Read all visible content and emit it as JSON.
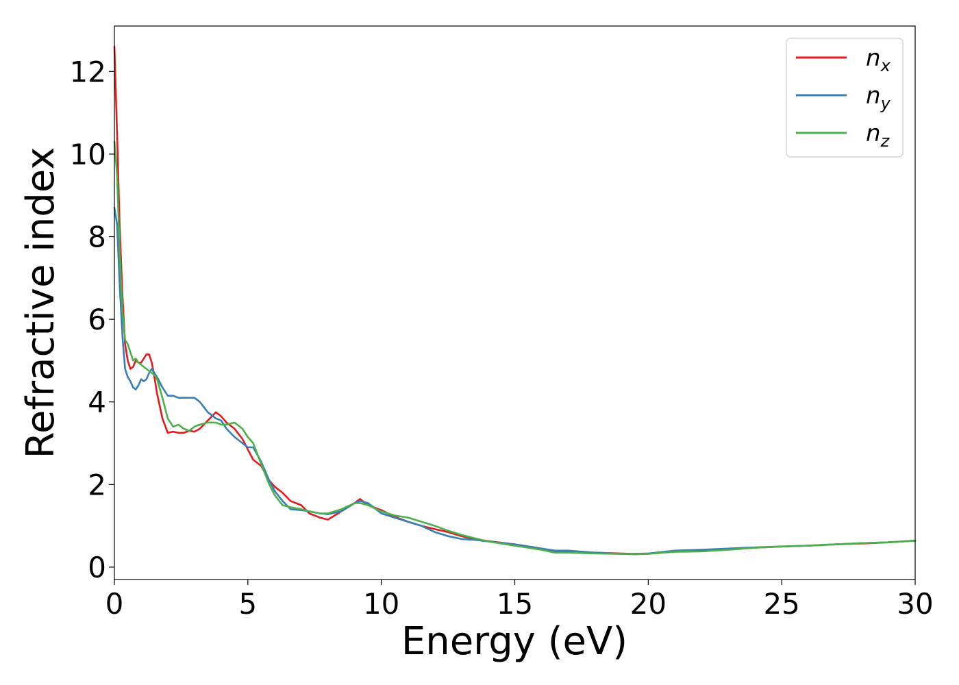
{
  "chart_data": {
    "type": "line",
    "xlabel": "Energy (eV)",
    "ylabel": "Refractive index",
    "xlim": [
      0,
      30
    ],
    "ylim": [
      -0.3,
      13.1
    ],
    "xticks": [
      "0",
      "5",
      "10",
      "15",
      "20",
      "25",
      "30"
    ],
    "yticks": [
      "0",
      "2",
      "4",
      "6",
      "8",
      "10",
      "12"
    ],
    "grid": false,
    "legend_position": "top-right",
    "series": [
      {
        "name": "n",
        "subscript": "x",
        "color": "#e41a1c",
        "x": [
          0.0,
          0.1,
          0.2,
          0.3,
          0.4,
          0.5,
          0.6,
          0.7,
          0.8,
          0.9,
          1.0,
          1.1,
          1.2,
          1.3,
          1.4,
          1.5,
          1.6,
          1.8,
          2.0,
          2.2,
          2.4,
          2.6,
          2.8,
          3.0,
          3.2,
          3.5,
          3.8,
          4.0,
          4.2,
          4.5,
          4.8,
          5.0,
          5.2,
          5.5,
          5.8,
          6.0,
          6.3,
          6.6,
          7.0,
          7.3,
          7.7,
          8.0,
          8.5,
          9.0,
          9.2,
          9.5,
          10.0,
          10.5,
          11.0,
          11.5,
          12.0,
          12.5,
          13.0,
          13.5,
          14.0,
          15.0,
          16.0,
          16.5,
          17.0,
          18.0,
          19.0,
          19.5,
          20.0,
          21.0,
          22.0,
          23.0,
          24.0,
          25.0,
          26.0,
          27.0,
          28.0,
          29.0,
          30.0
        ],
        "y": [
          12.6,
          10.5,
          8.2,
          6.6,
          5.4,
          5.0,
          4.8,
          4.85,
          5.0,
          4.95,
          4.95,
          5.05,
          5.15,
          5.15,
          4.95,
          4.6,
          4.2,
          3.6,
          3.25,
          3.28,
          3.25,
          3.25,
          3.3,
          3.28,
          3.35,
          3.55,
          3.75,
          3.65,
          3.5,
          3.35,
          3.1,
          2.85,
          2.6,
          2.45,
          2.1,
          1.95,
          1.8,
          1.6,
          1.5,
          1.3,
          1.2,
          1.15,
          1.35,
          1.55,
          1.65,
          1.5,
          1.38,
          1.22,
          1.1,
          1.0,
          0.92,
          0.85,
          0.75,
          0.68,
          0.63,
          0.55,
          0.45,
          0.38,
          0.38,
          0.35,
          0.33,
          0.32,
          0.33,
          0.38,
          0.4,
          0.43,
          0.47,
          0.5,
          0.52,
          0.55,
          0.57,
          0.6,
          0.64
        ]
      },
      {
        "name": "n",
        "subscript": "y",
        "color": "#377eb8",
        "x": [
          0.0,
          0.1,
          0.2,
          0.3,
          0.4,
          0.5,
          0.6,
          0.7,
          0.8,
          0.9,
          1.0,
          1.1,
          1.2,
          1.3,
          1.4,
          1.5,
          1.6,
          1.8,
          2.0,
          2.2,
          2.4,
          2.6,
          2.8,
          3.0,
          3.2,
          3.5,
          3.8,
          4.0,
          4.2,
          4.5,
          4.8,
          5.0,
          5.2,
          5.5,
          5.8,
          6.0,
          6.3,
          6.6,
          7.0,
          7.3,
          7.7,
          8.0,
          8.5,
          9.0,
          9.2,
          9.5,
          10.0,
          10.5,
          11.0,
          11.5,
          12.0,
          12.5,
          13.0,
          13.5,
          14.0,
          15.0,
          16.0,
          16.5,
          17.0,
          18.0,
          19.0,
          19.5,
          20.0,
          21.0,
          22.0,
          23.0,
          24.0,
          25.0,
          26.0,
          27.0,
          28.0,
          29.0,
          30.0
        ],
        "y": [
          8.7,
          8.3,
          6.8,
          5.6,
          4.8,
          4.6,
          4.5,
          4.35,
          4.3,
          4.4,
          4.55,
          4.5,
          4.55,
          4.7,
          4.8,
          4.7,
          4.6,
          4.35,
          4.15,
          4.15,
          4.1,
          4.1,
          4.1,
          4.1,
          4.0,
          3.75,
          3.6,
          3.55,
          3.35,
          3.15,
          3.0,
          2.9,
          2.9,
          2.55,
          2.1,
          1.85,
          1.6,
          1.4,
          1.38,
          1.35,
          1.3,
          1.28,
          1.35,
          1.55,
          1.6,
          1.55,
          1.3,
          1.2,
          1.1,
          1.0,
          0.85,
          0.75,
          0.68,
          0.66,
          0.62,
          0.55,
          0.45,
          0.4,
          0.4,
          0.35,
          0.32,
          0.32,
          0.33,
          0.4,
          0.42,
          0.45,
          0.48,
          0.5,
          0.52,
          0.55,
          0.58,
          0.6,
          0.64
        ]
      },
      {
        "name": "n",
        "subscript": "z",
        "color": "#4daf4a",
        "x": [
          0.0,
          0.1,
          0.2,
          0.3,
          0.4,
          0.5,
          0.6,
          0.7,
          0.8,
          0.9,
          1.0,
          1.1,
          1.2,
          1.3,
          1.4,
          1.5,
          1.6,
          1.8,
          2.0,
          2.2,
          2.4,
          2.6,
          2.8,
          3.0,
          3.2,
          3.5,
          3.8,
          4.0,
          4.2,
          4.5,
          4.8,
          5.0,
          5.2,
          5.5,
          5.8,
          6.0,
          6.3,
          6.6,
          7.0,
          7.3,
          7.7,
          8.0,
          8.5,
          9.0,
          9.2,
          9.5,
          10.0,
          10.5,
          11.0,
          11.5,
          12.0,
          12.5,
          13.0,
          13.5,
          14.0,
          15.0,
          16.0,
          16.5,
          17.0,
          18.0,
          19.0,
          19.5,
          20.0,
          21.0,
          22.0,
          23.0,
          24.0,
          25.0,
          26.0,
          27.0,
          28.0,
          29.0,
          30.0
        ],
        "y": [
          10.3,
          9.5,
          7.6,
          6.2,
          5.5,
          5.4,
          5.2,
          5.0,
          5.05,
          4.95,
          4.9,
          4.85,
          4.8,
          4.75,
          4.7,
          4.65,
          4.55,
          4.1,
          3.6,
          3.4,
          3.45,
          3.35,
          3.3,
          3.4,
          3.45,
          3.5,
          3.5,
          3.45,
          3.45,
          3.5,
          3.35,
          3.15,
          3.0,
          2.5,
          2.0,
          1.75,
          1.5,
          1.45,
          1.4,
          1.35,
          1.3,
          1.3,
          1.4,
          1.55,
          1.55,
          1.5,
          1.35,
          1.25,
          1.2,
          1.1,
          1.0,
          0.88,
          0.78,
          0.7,
          0.62,
          0.52,
          0.42,
          0.35,
          0.35,
          0.33,
          0.32,
          0.31,
          0.32,
          0.37,
          0.38,
          0.42,
          0.47,
          0.5,
          0.52,
          0.55,
          0.58,
          0.6,
          0.64
        ]
      }
    ]
  }
}
